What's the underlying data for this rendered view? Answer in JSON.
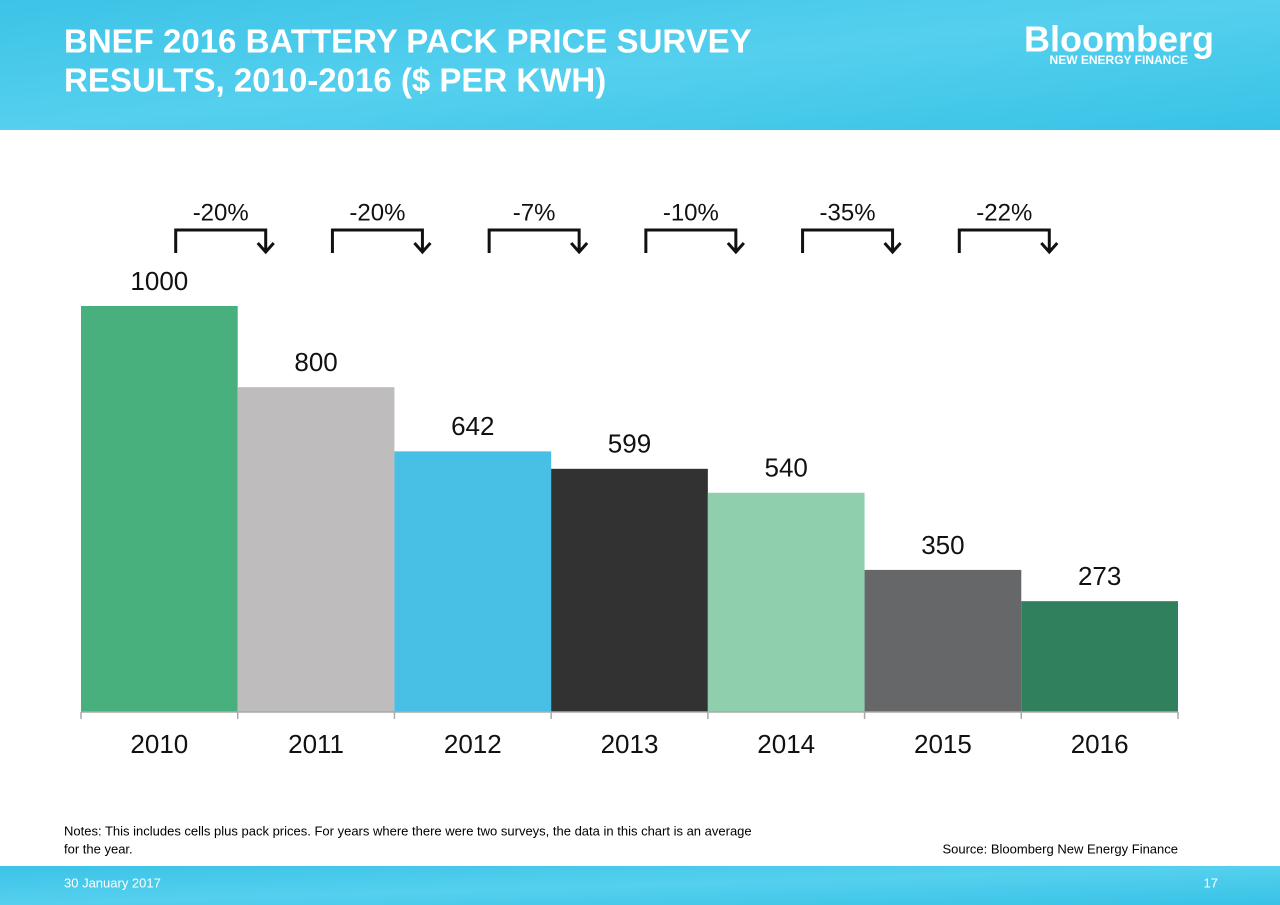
{
  "header": {
    "title_line1": "BNEF 2016 BATTERY PACK PRICE SURVEY",
    "title_line2": "RESULTS, 2010-2016 ($ PER KWH)",
    "logo": "Bloomberg",
    "logo_sub": "NEW ENERGY FINANCE"
  },
  "chart_data": {
    "type": "bar",
    "categories": [
      "2010",
      "2011",
      "2012",
      "2013",
      "2014",
      "2015",
      "2016"
    ],
    "values": [
      1000,
      800,
      642,
      599,
      540,
      350,
      273
    ],
    "colors": [
      "#48b07c",
      "#bebcbd",
      "#48c0e6",
      "#333233",
      "#8fcfae",
      "#666769",
      "#30805d"
    ],
    "ylim": [
      0,
      1000
    ],
    "annotations": [
      "-20%",
      "-20%",
      "-7%",
      "-10%",
      "-35%",
      "-22%"
    ]
  },
  "notes": {
    "text_line1": "Notes: This includes cells plus pack prices. For years where there were two surveys, the data in this chart is an average",
    "text_line2": "for the year.",
    "source": "Source: Bloomberg New Energy Finance"
  },
  "footer": {
    "date": "30 January 2017",
    "page": "17"
  }
}
